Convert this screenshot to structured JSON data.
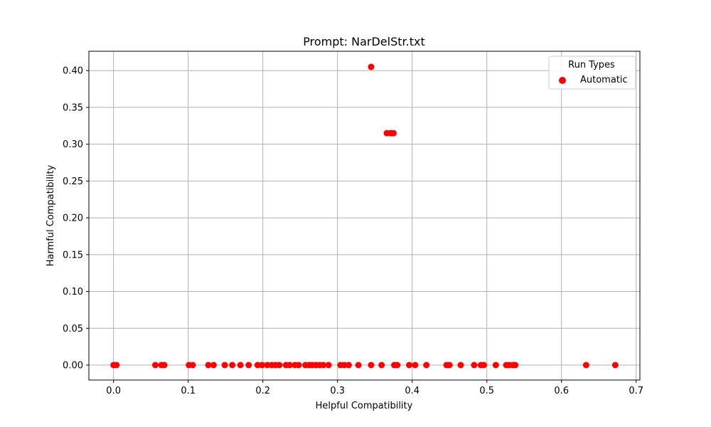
{
  "chart_data": {
    "type": "scatter",
    "title": "Prompt: NarDelStr.txt",
    "xlabel": "Helpful Compatibility",
    "ylabel": "Harmful Compatibility",
    "xlim": [
      -0.033,
      0.705
    ],
    "ylim": [
      -0.0203,
      0.4263
    ],
    "xticks": [
      0.0,
      0.1,
      0.2,
      0.3,
      0.4,
      0.5,
      0.6,
      0.7
    ],
    "xtick_labels": [
      "0.0",
      "0.1",
      "0.2",
      "0.3",
      "0.4",
      "0.5",
      "0.6",
      "0.7"
    ],
    "yticks": [
      0.0,
      0.05,
      0.1,
      0.15,
      0.2,
      0.25,
      0.3,
      0.35,
      0.4
    ],
    "ytick_labels": [
      "0.00",
      "0.05",
      "0.10",
      "0.15",
      "0.20",
      "0.25",
      "0.30",
      "0.35",
      "0.40"
    ],
    "grid": true,
    "legend": {
      "title": "Run Types",
      "placement": "top-right"
    },
    "series": [
      {
        "name": "Automatic",
        "color": "#ff0000",
        "points": [
          [
            0.0,
            0.0
          ],
          [
            0.004,
            0.0
          ],
          [
            0.056,
            0.0
          ],
          [
            0.064,
            0.0
          ],
          [
            0.068,
            0.0
          ],
          [
            0.101,
            0.0
          ],
          [
            0.106,
            0.0
          ],
          [
            0.127,
            0.0
          ],
          [
            0.134,
            0.0
          ],
          [
            0.149,
            0.0
          ],
          [
            0.159,
            0.0
          ],
          [
            0.17,
            0.0
          ],
          [
            0.181,
            0.0
          ],
          [
            0.193,
            0.0
          ],
          [
            0.199,
            0.0
          ],
          [
            0.206,
            0.0
          ],
          [
            0.212,
            0.0
          ],
          [
            0.217,
            0.0
          ],
          [
            0.222,
            0.0
          ],
          [
            0.231,
            0.0
          ],
          [
            0.236,
            0.0
          ],
          [
            0.243,
            0.0
          ],
          [
            0.248,
            0.0
          ],
          [
            0.257,
            0.0
          ],
          [
            0.262,
            0.0
          ],
          [
            0.266,
            0.0
          ],
          [
            0.271,
            0.0
          ],
          [
            0.276,
            0.0
          ],
          [
            0.281,
            0.0
          ],
          [
            0.288,
            0.0
          ],
          [
            0.304,
            0.0
          ],
          [
            0.309,
            0.0
          ],
          [
            0.315,
            0.0
          ],
          [
            0.328,
            0.0
          ],
          [
            0.345,
            0.0
          ],
          [
            0.359,
            0.0
          ],
          [
            0.376,
            0.0
          ],
          [
            0.38,
            0.0
          ],
          [
            0.396,
            0.0
          ],
          [
            0.404,
            0.0
          ],
          [
            0.419,
            0.0
          ],
          [
            0.446,
            0.0
          ],
          [
            0.45,
            0.0
          ],
          [
            0.465,
            0.0
          ],
          [
            0.483,
            0.0
          ],
          [
            0.492,
            0.0
          ],
          [
            0.496,
            0.0
          ],
          [
            0.512,
            0.0
          ],
          [
            0.526,
            0.0
          ],
          [
            0.53,
            0.0
          ],
          [
            0.535,
            0.0
          ],
          [
            0.538,
            0.0
          ],
          [
            0.633,
            0.0
          ],
          [
            0.672,
            0.0
          ],
          [
            0.345,
            0.405
          ],
          [
            0.366,
            0.315
          ],
          [
            0.371,
            0.315
          ],
          [
            0.375,
            0.315
          ]
        ]
      }
    ]
  }
}
